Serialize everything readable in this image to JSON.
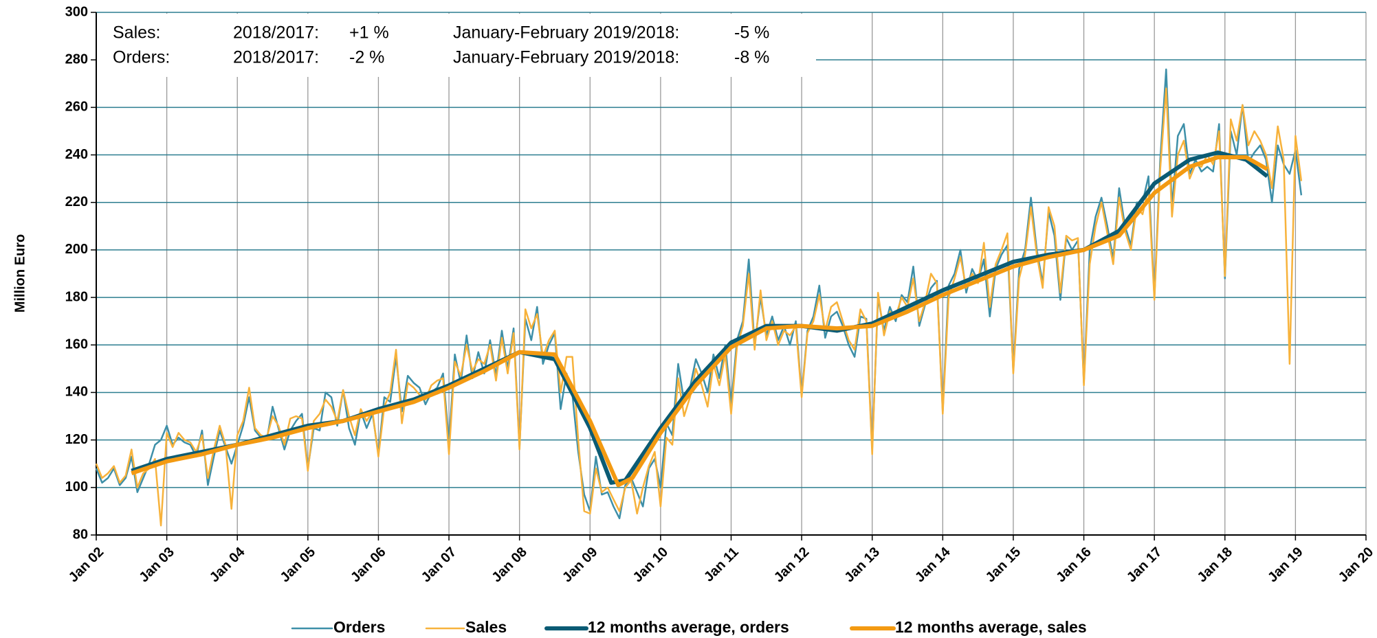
{
  "chart_data": {
    "type": "line",
    "y_label": "Million Euro",
    "annotations": [
      {
        "label": "Sales:",
        "period1": "2018/2017:",
        "value1": "+1 %",
        "period2": "January-February 2019/2018:",
        "value2": "-5 %"
      },
      {
        "label": "Orders:",
        "period1": "2018/2017:",
        "value1": "-2 %",
        "period2": "January-February 2019/2018:",
        "value2": "-8 %"
      }
    ],
    "xlim": [
      2002,
      2020
    ],
    "xticks": [
      {
        "value": 2002,
        "label": "Jan 02"
      },
      {
        "value": 2003,
        "label": "Jan 03"
      },
      {
        "value": 2004,
        "label": "Jan 04"
      },
      {
        "value": 2005,
        "label": "Jan 05"
      },
      {
        "value": 2006,
        "label": "Jan 06"
      },
      {
        "value": 2007,
        "label": "Jan 07"
      },
      {
        "value": 2008,
        "label": "Jan 08"
      },
      {
        "value": 2009,
        "label": "Jan 09"
      },
      {
        "value": 2010,
        "label": "Jan 10"
      },
      {
        "value": 2011,
        "label": "Jan 11"
      },
      {
        "value": 2012,
        "label": "Jan 12"
      },
      {
        "value": 2013,
        "label": "Jan 13"
      },
      {
        "value": 2014,
        "label": "Jan 14"
      },
      {
        "value": 2015,
        "label": "Jan 15"
      },
      {
        "value": 2016,
        "label": "Jan 16"
      },
      {
        "value": 2017,
        "label": "Jan 17"
      },
      {
        "value": 2018,
        "label": "Jan 18"
      },
      {
        "value": 2019,
        "label": "Jan 19"
      },
      {
        "value": 2020,
        "label": "Jan 20"
      }
    ],
    "ylim": [
      80,
      300
    ],
    "yticks": [
      80,
      100,
      120,
      140,
      160,
      180,
      200,
      220,
      240,
      260,
      280,
      300
    ],
    "grid": true,
    "legend": "bottom",
    "x": [
      2002,
      2002.083,
      2002.167,
      2002.25,
      2002.333,
      2002.417,
      2002.5,
      2002.583,
      2002.667,
      2002.75,
      2002.833,
      2002.917,
      2003,
      2003.083,
      2003.167,
      2003.25,
      2003.333,
      2003.417,
      2003.5,
      2003.583,
      2003.667,
      2003.75,
      2003.833,
      2003.917,
      2004,
      2004.083,
      2004.167,
      2004.25,
      2004.333,
      2004.417,
      2004.5,
      2004.583,
      2004.667,
      2004.75,
      2004.833,
      2004.917,
      2005,
      2005.083,
      2005.167,
      2005.25,
      2005.333,
      2005.417,
      2005.5,
      2005.583,
      2005.667,
      2005.75,
      2005.833,
      2005.917,
      2006,
      2006.083,
      2006.167,
      2006.25,
      2006.333,
      2006.417,
      2006.5,
      2006.583,
      2006.667,
      2006.75,
      2006.833,
      2006.917,
      2007,
      2007.083,
      2007.167,
      2007.25,
      2007.333,
      2007.417,
      2007.5,
      2007.583,
      2007.667,
      2007.75,
      2007.833,
      2007.917,
      2008,
      2008.083,
      2008.167,
      2008.25,
      2008.333,
      2008.417,
      2008.5,
      2008.583,
      2008.667,
      2008.75,
      2008.833,
      2008.917,
      2009,
      2009.083,
      2009.167,
      2009.25,
      2009.333,
      2009.417,
      2009.5,
      2009.583,
      2009.667,
      2009.75,
      2009.833,
      2009.917,
      2010,
      2010.083,
      2010.167,
      2010.25,
      2010.333,
      2010.417,
      2010.5,
      2010.583,
      2010.667,
      2010.75,
      2010.833,
      2010.917,
      2011,
      2011.083,
      2011.167,
      2011.25,
      2011.333,
      2011.417,
      2011.5,
      2011.583,
      2011.667,
      2011.75,
      2011.833,
      2011.917,
      2012,
      2012.083,
      2012.167,
      2012.25,
      2012.333,
      2012.417,
      2012.5,
      2012.583,
      2012.667,
      2012.75,
      2012.833,
      2012.917,
      2013,
      2013.083,
      2013.167,
      2013.25,
      2013.333,
      2013.417,
      2013.5,
      2013.583,
      2013.667,
      2013.75,
      2013.833,
      2013.917,
      2014,
      2014.083,
      2014.167,
      2014.25,
      2014.333,
      2014.417,
      2014.5,
      2014.583,
      2014.667,
      2014.75,
      2014.833,
      2014.917,
      2015,
      2015.083,
      2015.167,
      2015.25,
      2015.333,
      2015.417,
      2015.5,
      2015.583,
      2015.667,
      2015.75,
      2015.833,
      2015.917,
      2016,
      2016.083,
      2016.167,
      2016.25,
      2016.333,
      2016.417,
      2016.5,
      2016.583,
      2016.667,
      2016.75,
      2016.833,
      2016.917,
      2017,
      2017.083,
      2017.167,
      2017.25,
      2017.333,
      2017.417,
      2017.5,
      2017.583,
      2017.667,
      2017.75,
      2017.833,
      2017.917,
      2018,
      2018.083,
      2018.167,
      2018.25,
      2018.333,
      2018.417,
      2018.5,
      2018.583,
      2018.667,
      2018.75,
      2018.833,
      2018.917,
      2019,
      2019.083
    ],
    "series": [
      {
        "name": "Orders",
        "color": "#3d8fa8",
        "width": 2.5,
        "values": [
          108,
          102,
          104,
          108,
          101,
          104,
          113,
          98,
          104,
          110,
          118,
          120,
          126,
          118,
          121,
          119,
          118,
          113,
          124,
          101,
          113,
          124,
          117,
          110,
          118,
          126,
          138,
          124,
          121,
          120,
          134,
          125,
          116,
          124,
          128,
          131,
          108,
          125,
          124,
          140,
          138,
          126,
          141,
          125,
          118,
          132,
          125,
          131,
          114,
          138,
          136,
          155,
          132,
          147,
          144,
          142,
          135,
          140,
          142,
          148,
          119,
          156,
          144,
          164,
          146,
          157,
          148,
          162,
          147,
          166,
          150,
          167,
          117,
          171,
          162,
          176,
          152,
          160,
          165,
          133,
          148,
          139,
          115,
          97,
          90,
          113,
          97,
          98,
          92,
          87,
          101,
          104,
          98,
          92,
          108,
          112,
          100,
          127,
          122,
          152,
          136,
          142,
          154,
          148,
          140,
          156,
          146,
          160,
          135,
          162,
          170,
          196,
          160,
          180,
          164,
          172,
          162,
          168,
          160,
          170,
          139,
          166,
          172,
          185,
          163,
          172,
          174,
          168,
          160,
          155,
          172,
          171,
          116,
          180,
          166,
          176,
          170,
          181,
          178,
          193,
          168,
          177,
          184,
          187,
          132,
          185,
          190,
          200,
          182,
          192,
          187,
          196,
          172,
          192,
          198,
          202,
          149,
          192,
          200,
          222,
          200,
          186,
          216,
          206,
          179,
          205,
          200,
          204,
          144,
          200,
          214,
          222,
          210,
          196,
          226,
          210,
          202,
          220,
          220,
          231,
          180,
          238,
          276,
          218,
          248,
          253,
          232,
          238,
          233,
          235,
          233,
          253,
          188,
          250,
          240,
          261,
          237,
          241,
          244,
          238,
          220,
          244,
          236,
          232,
          242,
          223
        ]
      },
      {
        "name": "Sales",
        "color": "#f7b23b",
        "width": 2.5,
        "values": [
          110,
          104,
          106,
          109,
          102,
          105,
          116,
          100,
          106,
          108,
          112,
          84,
          123,
          117,
          123,
          120,
          119,
          115,
          122,
          104,
          116,
          126,
          118,
          91,
          122,
          128,
          142,
          125,
          122,
          121,
          130,
          126,
          118,
          129,
          130,
          129,
          107,
          128,
          131,
          137,
          134,
          128,
          141,
          130,
          122,
          133,
          128,
          132,
          113,
          134,
          140,
          158,
          127,
          144,
          142,
          139,
          137,
          143,
          145,
          146,
          114,
          153,
          147,
          160,
          149,
          154,
          152,
          160,
          145,
          163,
          148,
          165,
          116,
          175,
          167,
          173,
          155,
          162,
          166,
          140,
          155,
          155,
          120,
          90,
          89,
          108,
          98,
          100,
          95,
          90,
          100,
          103,
          89,
          100,
          109,
          115,
          92,
          121,
          118,
          146,
          130,
          138,
          150,
          143,
          134,
          152,
          143,
          156,
          131,
          159,
          168,
          190,
          158,
          183,
          162,
          170,
          160,
          166,
          164,
          168,
          138,
          165,
          170,
          181,
          166,
          176,
          178,
          170,
          162,
          158,
          175,
          170,
          114,
          182,
          164,
          174,
          172,
          180,
          176,
          188,
          170,
          178,
          190,
          186,
          131,
          180,
          188,
          197,
          184,
          190,
          186,
          203,
          176,
          194,
          200,
          207,
          148,
          188,
          198,
          218,
          198,
          184,
          218,
          210,
          182,
          206,
          204,
          205,
          143,
          194,
          210,
          220,
          207,
          194,
          222,
          208,
          200,
          218,
          215,
          226,
          179,
          234,
          268,
          214,
          240,
          246,
          230,
          236,
          235,
          240,
          236,
          250,
          189,
          255,
          246,
          261,
          244,
          250,
          246,
          240,
          226,
          252,
          238,
          152,
          248,
          229
        ]
      },
      {
        "name": "12 months average, orders",
        "color": "#0b5b74",
        "width": 6,
        "x": [
          2002.5,
          2003,
          2003.5,
          2004,
          2004.5,
          2005,
          2005.5,
          2006,
          2006.5,
          2007,
          2007.5,
          2008,
          2008.5,
          2009,
          2009.3,
          2009.5,
          2010,
          2010.5,
          2011,
          2011.5,
          2012,
          2012.5,
          2013,
          2013.5,
          2014,
          2014.5,
          2015,
          2015.5,
          2016,
          2016.5,
          2017,
          2017.5,
          2017.9,
          2018.3,
          2018.6
        ],
        "values": [
          107,
          112,
          115,
          118,
          122,
          126,
          128,
          133,
          137,
          143,
          150,
          157,
          154,
          125,
          102,
          103,
          125,
          145,
          161,
          168,
          168,
          166,
          169,
          176,
          183,
          189,
          195,
          198,
          200,
          208,
          228,
          238,
          241,
          238,
          231
        ]
      },
      {
        "name": "12 months average, sales",
        "color": "#f39a12",
        "width": 6,
        "x": [
          2002.5,
          2003,
          2003.5,
          2004,
          2004.5,
          2005,
          2005.5,
          2006,
          2006.5,
          2007,
          2007.5,
          2008,
          2008.5,
          2009,
          2009.4,
          2009.6,
          2010,
          2010.5,
          2011,
          2011.5,
          2012,
          2012.5,
          2013,
          2013.5,
          2014,
          2014.5,
          2015,
          2015.5,
          2016,
          2016.5,
          2017,
          2017.5,
          2017.9,
          2018.3,
          2018.6
        ],
        "values": [
          106,
          111,
          114,
          118,
          121,
          125,
          128,
          132,
          136,
          142,
          149,
          157,
          156,
          128,
          101,
          104,
          123,
          143,
          159,
          167,
          168,
          167,
          168,
          174,
          181,
          187,
          193,
          197,
          200,
          206,
          224,
          235,
          239,
          239,
          234
        ]
      }
    ]
  }
}
